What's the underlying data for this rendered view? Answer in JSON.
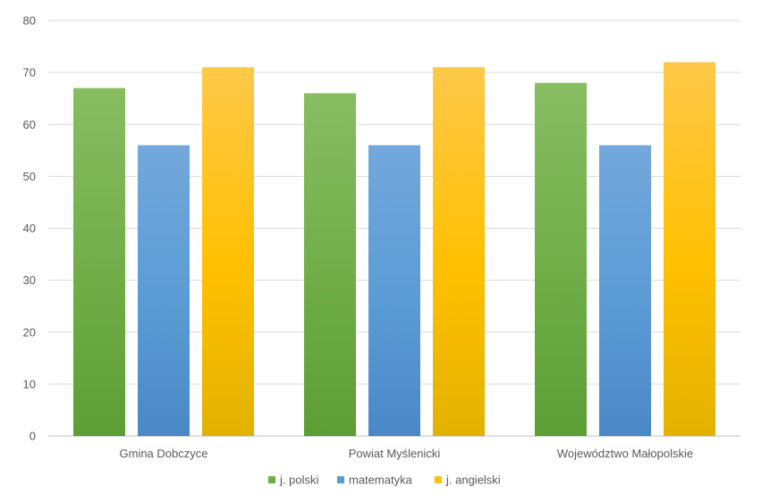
{
  "chart_data": {
    "type": "bar",
    "title": "",
    "xlabel": "",
    "ylabel": "",
    "categories": [
      "Gmina Dobczyce",
      "Powiat Myślenicki",
      "Województwo Małopolskie"
    ],
    "series": [
      {
        "name": "j. polski",
        "values": [
          67,
          66,
          68
        ],
        "color": "#70AD47",
        "color_light": "#88BD62",
        "color_dark": "#5E9E35"
      },
      {
        "name": "matematyka",
        "values": [
          56,
          56,
          56
        ],
        "color": "#5B9BD5",
        "color_light": "#73A8DC",
        "color_dark": "#4A88C6"
      },
      {
        "name": "j. angielski",
        "values": [
          71,
          71,
          72
        ],
        "color": "#FFC000",
        "color_light": "#FFC84A",
        "color_dark": "#E2B200"
      }
    ],
    "ylim": [
      0,
      80
    ],
    "yticks": [
      0,
      10,
      20,
      30,
      40,
      50,
      60,
      70,
      80
    ],
    "grid": true,
    "legend_position": "bottom"
  }
}
